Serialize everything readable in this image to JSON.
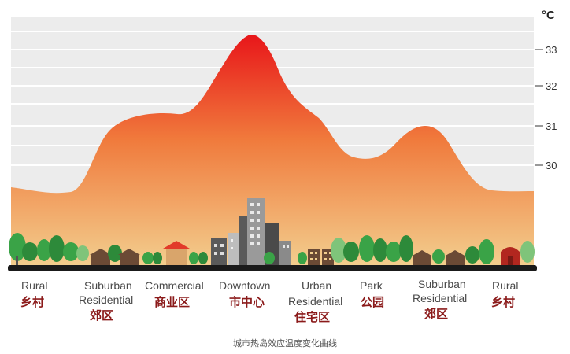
{
  "diagram": {
    "unit": "°C",
    "ticks": [
      "33",
      "32",
      "31",
      "30"
    ],
    "caption": "城市热岛效应温度变化曲线",
    "colors": {
      "peak": "#e8161a",
      "mid": "#f07a3c",
      "base": "#f3cf8f",
      "background": "#ececec",
      "ground": "#1a1a1a",
      "tree": "#3aa347",
      "tree_dark": "#2d8a3a",
      "house": "#6b4a35",
      "roof": "#e23a2a",
      "building": "#5a5a5a",
      "building_light": "#9a9a9a"
    },
    "zones": [
      {
        "en": [
          "Rural"
        ],
        "cn": "乡村"
      },
      {
        "en": [
          "Suburban",
          "Residential"
        ],
        "cn": "郊区"
      },
      {
        "en": [
          "Commercial"
        ],
        "cn": "商业区"
      },
      {
        "en": [
          "Downtown"
        ],
        "cn": "市中心"
      },
      {
        "en": [
          "Urban",
          "Residential"
        ],
        "cn": "住宅区"
      },
      {
        "en": [
          "Park"
        ],
        "cn": "公园"
      },
      {
        "en": [
          "Suburban",
          "Residential"
        ],
        "cn": "郊区"
      },
      {
        "en": [
          "Rural"
        ],
        "cn": "乡村"
      }
    ]
  }
}
